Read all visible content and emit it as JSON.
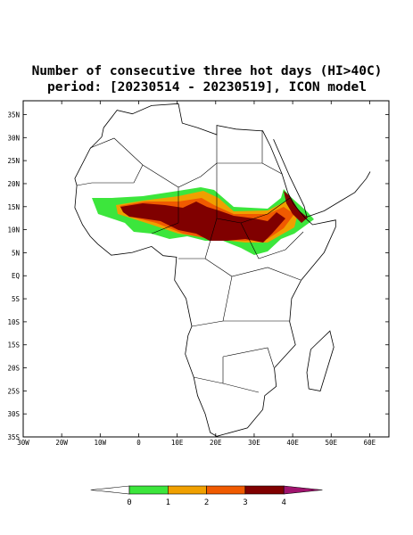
{
  "header": {
    "title_line1": "Number of consecutive three hot days (HI>40C)",
    "title_line2": "period: [20230514 - 20230519], ICON model"
  },
  "map": {
    "xlim": [
      -30,
      65
    ],
    "ylim": [
      -35,
      38
    ],
    "xticks": [
      {
        "value": -30,
        "label": "30W"
      },
      {
        "value": -20,
        "label": "20W"
      },
      {
        "value": -10,
        "label": "10W"
      },
      0,
      {
        "value": 10,
        "label": "10E"
      },
      {
        "value": 20,
        "label": "20E"
      },
      {
        "value": 30,
        "label": "30E"
      },
      {
        "value": 40,
        "label": "40E"
      },
      {
        "value": 50,
        "label": "50E"
      },
      {
        "value": 60,
        "label": "60E"
      }
    ],
    "yticks": [
      {
        "value": 35,
        "label": "35N"
      },
      {
        "value": 30,
        "label": "30N"
      },
      {
        "value": 25,
        "label": "25N"
      },
      {
        "value": 20,
        "label": "20N"
      },
      {
        "value": 15,
        "label": "15N"
      },
      {
        "value": 10,
        "label": "10N"
      },
      {
        "value": 5,
        "label": "5N"
      },
      {
        "value": 0,
        "label": "EQ"
      },
      {
        "value": -5,
        "label": "5S"
      },
      {
        "value": -10,
        "label": "10S"
      },
      {
        "value": -15,
        "label": "15S"
      },
      {
        "value": -20,
        "label": "20S"
      },
      {
        "value": -25,
        "label": "25S"
      },
      {
        "value": -30,
        "label": "30S"
      },
      {
        "value": -35,
        "label": "35S"
      }
    ]
  },
  "colorbar": {
    "levels": [
      0,
      1,
      2,
      3,
      4
    ],
    "colors": [
      "#ffffff",
      "#3ce63c",
      "#f0a000",
      "#f05a00",
      "#800000",
      "#a0146e"
    ]
  }
}
